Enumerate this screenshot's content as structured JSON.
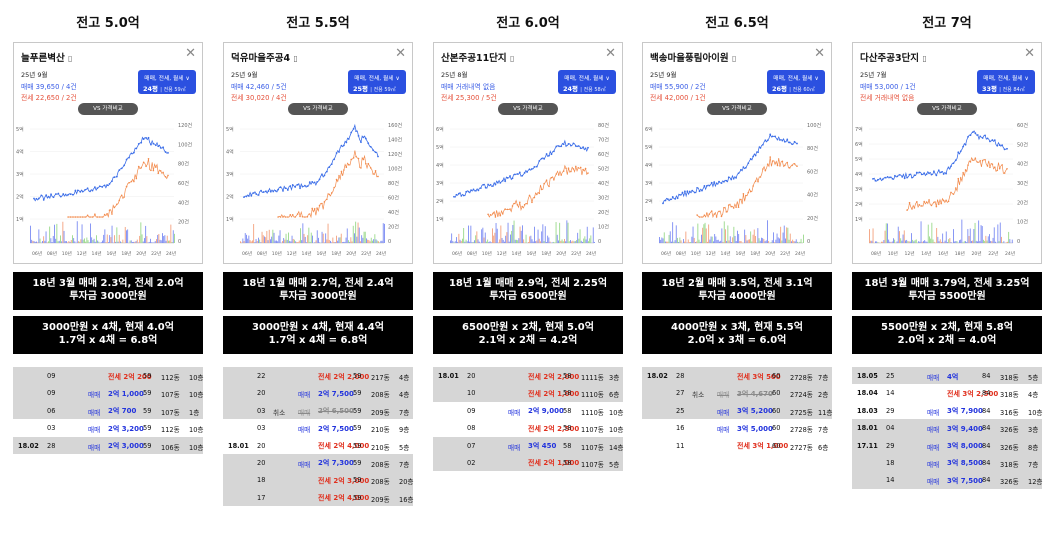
{
  "colors": {
    "sale": "#3c6ee8",
    "lease": "#ee7a3a",
    "primary": "#2b50e0"
  },
  "icons": {
    "close": "close-icon",
    "map": "map-icon",
    "dropdown": "chevron-down-icon"
  },
  "columns": [
    {
      "header": "전고 5.0억",
      "card": {
        "name": "늘푸른벽산",
        "date": "25년 9월",
        "sale": "매매 39,650 / 4건",
        "lease": "전세 22,650 / 2건",
        "type_label": "매매, 전세, 월세 ∨",
        "size": "24평",
        "size_sub": "전용 59㎡",
        "vs_button": "VS 가격비교",
        "y_left": [
          "5억",
          "4억",
          "3억",
          "2억",
          "1억"
        ],
        "y_right": [
          "120건",
          "100건",
          "80건",
          "60건",
          "40건",
          "20건",
          "0"
        ],
        "x_ticks": [
          "06년",
          "08년",
          "10년",
          "12년",
          "14년",
          "16년",
          "18년",
          "20년",
          "22년",
          "24년"
        ]
      },
      "summary1": [
        "18년 3월 매매 2.3억, 전세 2.0억",
        "투자금 3000만원"
      ],
      "summary2": [
        "3000만원 x 4채, 현재 4.0억",
        "1.7억 x 4채 = 6.8억"
      ],
      "transactions": [
        {
          "ym": "",
          "day": "09",
          "cancel": "",
          "type": "",
          "price": "전세 2억 200",
          "kind": "lease",
          "area": "59",
          "unit": "112동",
          "floor": "10층",
          "bg": "g"
        },
        {
          "ym": "",
          "day": "09",
          "cancel": "",
          "type": "매매",
          "price": "2억 1,000",
          "kind": "sale",
          "area": "59",
          "unit": "107동",
          "floor": "10층",
          "bg": "g"
        },
        {
          "ym": "",
          "day": "06",
          "cancel": "",
          "type": "매매",
          "price": "2억 700",
          "kind": "sale",
          "area": "59",
          "unit": "107동",
          "floor": "1층",
          "bg": "g"
        },
        {
          "ym": "",
          "day": "03",
          "cancel": "",
          "type": "매매",
          "price": "2억 3,200",
          "kind": "sale",
          "area": "59",
          "unit": "112동",
          "floor": "10층",
          "bg": "w"
        },
        {
          "ym": "18.02",
          "day": "28",
          "cancel": "",
          "type": "매매",
          "price": "2억 3,000",
          "kind": "sale",
          "area": "59",
          "unit": "106동",
          "floor": "10층",
          "bg": "g"
        }
      ]
    },
    {
      "header": "전고 5.5억",
      "card": {
        "name": "덕유마을주공4",
        "date": "25년 9월",
        "sale": "매매 42,460 / 5건",
        "lease": "전세 30,020 / 4건",
        "type_label": "매매, 전세, 월세 ∨",
        "size": "25평",
        "size_sub": "전용 59㎡",
        "vs_button": "VS 가격비교",
        "y_left": [
          "5억",
          "4억",
          "3억",
          "2억",
          "1억"
        ],
        "y_right": [
          "160건",
          "140건",
          "120건",
          "100건",
          "80건",
          "60건",
          "40건",
          "20건",
          "0"
        ],
        "x_ticks": [
          "06년",
          "08년",
          "10년",
          "12년",
          "14년",
          "16년",
          "18년",
          "20년",
          "22년",
          "24년"
        ]
      },
      "summary1": [
        "18년 1월 매매 2.7억, 전세 2.4억",
        "투자금 3000만원"
      ],
      "summary2": [
        "3000만원 x 4채, 현재 4.4억",
        "1.7억 x 4채 = 6.8억"
      ],
      "transactions": [
        {
          "ym": "",
          "day": "22",
          "cancel": "",
          "type": "",
          "price": "전세 2억 2,000",
          "kind": "lease",
          "area": "59",
          "unit": "217동",
          "floor": "4층",
          "bg": "g"
        },
        {
          "ym": "",
          "day": "20",
          "cancel": "",
          "type": "매매",
          "price": "2억 7,500",
          "kind": "sale",
          "area": "59",
          "unit": "208동",
          "floor": "4층",
          "bg": "g"
        },
        {
          "ym": "",
          "day": "03",
          "cancel": "취소",
          "type": "매매",
          "price": "2억 6,500",
          "kind": "strike",
          "area": "59",
          "unit": "209동",
          "floor": "7층",
          "bg": "g"
        },
        {
          "ym": "",
          "day": "03",
          "cancel": "",
          "type": "매매",
          "price": "2억 7,500",
          "kind": "sale",
          "area": "59",
          "unit": "210동",
          "floor": "9층",
          "bg": "w"
        },
        {
          "ym": "18.01",
          "day": "20",
          "cancel": "",
          "type": "",
          "price": "전세 2억 4,000",
          "kind": "lease",
          "area": "59",
          "unit": "210동",
          "floor": "5층",
          "bg": "w"
        },
        {
          "ym": "",
          "day": "20",
          "cancel": "",
          "type": "매매",
          "price": "2억 7,300",
          "kind": "sale",
          "area": "59",
          "unit": "208동",
          "floor": "7층",
          "bg": "g"
        },
        {
          "ym": "",
          "day": "18",
          "cancel": "",
          "type": "",
          "price": "전세 2억 3,000",
          "kind": "lease",
          "area": "59",
          "unit": "208동",
          "floor": "20층",
          "bg": "g"
        },
        {
          "ym": "",
          "day": "17",
          "cancel": "",
          "type": "",
          "price": "전세 2억 4,000",
          "kind": "lease",
          "area": "59",
          "unit": "209동",
          "floor": "16층",
          "bg": "g"
        }
      ]
    },
    {
      "header": "전고 6.0억",
      "card": {
        "name": "산본주공11단지",
        "date": "25년 8월",
        "sale": "매매 거래내역 없음",
        "lease": "전세 25,300 / 5건",
        "type_label": "매매, 전세, 월세 ∨",
        "size": "24평",
        "size_sub": "전용 58㎡",
        "vs_button": "VS 가격비교",
        "y_left": [
          "6억",
          "5억",
          "4억",
          "3억",
          "2억",
          "1억"
        ],
        "y_right": [
          "80건",
          "70건",
          "60건",
          "50건",
          "40건",
          "30건",
          "20건",
          "10건",
          "0"
        ],
        "x_ticks": [
          "06년",
          "08년",
          "10년",
          "12년",
          "14년",
          "16년",
          "18년",
          "20년",
          "22년",
          "24년"
        ]
      },
      "summary1": [
        "18년 1월 매매 2.9억, 전세 2.25억",
        "투자금 6500만원"
      ],
      "summary2": [
        "6500만원 x 2채, 현재 5.0억",
        "2.1억 x 2채 = 4.2억"
      ],
      "transactions": [
        {
          "ym": "18.01",
          "day": "20",
          "cancel": "",
          "type": "",
          "price": "전세 2억 2,000",
          "kind": "lease",
          "area": "58",
          "unit": "1111동",
          "floor": "3층",
          "bg": "g"
        },
        {
          "ym": "",
          "day": "10",
          "cancel": "",
          "type": "",
          "price": "전세 2억 1,000",
          "kind": "lease",
          "area": "58",
          "unit": "1110동",
          "floor": "6층",
          "bg": "g"
        },
        {
          "ym": "",
          "day": "09",
          "cancel": "",
          "type": "매매",
          "price": "2억 9,000",
          "kind": "sale",
          "area": "58",
          "unit": "1110동",
          "floor": "10층",
          "bg": "w"
        },
        {
          "ym": "",
          "day": "08",
          "cancel": "",
          "type": "",
          "price": "전세 2억 2,500",
          "kind": "lease",
          "area": "58",
          "unit": "1107동",
          "floor": "10층",
          "bg": "w"
        },
        {
          "ym": "",
          "day": "07",
          "cancel": "",
          "type": "매매",
          "price": "3억 450",
          "kind": "sale",
          "area": "58",
          "unit": "1107동",
          "floor": "14층",
          "bg": "g"
        },
        {
          "ym": "",
          "day": "02",
          "cancel": "",
          "type": "",
          "price": "전세 2억 1,000",
          "kind": "lease",
          "area": "58",
          "unit": "1107동",
          "floor": "5층",
          "bg": "g"
        }
      ]
    },
    {
      "header": "전고 6.5억",
      "card": {
        "name": "백송마을풍림아이원",
        "date": "25년 9월",
        "sale": "매매 55,900 / 2건",
        "lease": "전세 42,000 / 1건",
        "type_label": "매매, 전세, 월세 ∨",
        "size": "26평",
        "size_sub": "전용 60㎡",
        "vs_button": "VS 가격비교",
        "y_left": [
          "6억",
          "5억",
          "4억",
          "3억",
          "2억",
          "1억"
        ],
        "y_right": [
          "100건",
          "80건",
          "60건",
          "40건",
          "20건",
          "0"
        ],
        "x_ticks": [
          "06년",
          "08년",
          "10년",
          "12년",
          "14년",
          "16년",
          "18년",
          "20년",
          "22년",
          "24년"
        ]
      },
      "summary1": [
        "18년 2월 매매 3.5억, 전세 3.1억",
        "투자금 4000만원"
      ],
      "summary2": [
        "4000만원 x 3채, 현재 5.5억",
        "2.0억 x 3채 = 6.0억"
      ],
      "transactions": [
        {
          "ym": "18.02",
          "day": "28",
          "cancel": "",
          "type": "",
          "price": "전세 3억 500",
          "kind": "lease",
          "area": "60",
          "unit": "2728동",
          "floor": "7층",
          "bg": "g"
        },
        {
          "ym": "",
          "day": "27",
          "cancel": "취소",
          "type": "매매",
          "price": "3억 4,670",
          "kind": "strike",
          "area": "60",
          "unit": "2724동",
          "floor": "2층",
          "bg": "g"
        },
        {
          "ym": "",
          "day": "25",
          "cancel": "",
          "type": "매매",
          "price": "3억 5,200",
          "kind": "sale",
          "area": "60",
          "unit": "2725동",
          "floor": "11층",
          "bg": "g"
        },
        {
          "ym": "",
          "day": "16",
          "cancel": "",
          "type": "매매",
          "price": "3억 5,000",
          "kind": "sale",
          "area": "60",
          "unit": "2728동",
          "floor": "7층",
          "bg": "w"
        },
        {
          "ym": "",
          "day": "11",
          "cancel": "",
          "type": "",
          "price": "전세 3억 1,000",
          "kind": "lease",
          "area": "60",
          "unit": "2727동",
          "floor": "6층",
          "bg": "w"
        }
      ]
    },
    {
      "header": "전고 7억",
      "card": {
        "name": "다산주공3단지",
        "date": "25년 7월",
        "sale": "매매 53,000 / 1건",
        "lease": "전세 거래내역 없음",
        "type_label": "매매, 전세, 월세 ∨",
        "size": "33평",
        "size_sub": "전용 84㎡",
        "vs_button": "VS 가격비교",
        "y_left": [
          "7억",
          "6억",
          "5억",
          "4억",
          "3억",
          "2억",
          "1억"
        ],
        "y_right": [
          "60건",
          "50건",
          "40건",
          "30건",
          "20건",
          "10건",
          "0"
        ],
        "x_ticks": [
          "08년",
          "10년",
          "12년",
          "14년",
          "16년",
          "18년",
          "20년",
          "22년",
          "24년"
        ]
      },
      "summary1": [
        "18년 3월 매매 3.79억, 전세 3.25억",
        "투자금 5500만원"
      ],
      "summary2": [
        "5500만원 x 2채, 현재 5.8억",
        "2.0억 x 2채 = 4.0억"
      ],
      "transactions": [
        {
          "ym": "18.05",
          "day": "25",
          "cancel": "",
          "type": "매매",
          "price": "4억",
          "kind": "sale",
          "area": "84",
          "unit": "318동",
          "floor": "5층",
          "bg": "g"
        },
        {
          "ym": "18.04",
          "day": "14",
          "cancel": "",
          "type": "",
          "price": "전세 3억 2,500",
          "kind": "lease",
          "area": "84",
          "unit": "318동",
          "floor": "4층",
          "bg": "w"
        },
        {
          "ym": "18.03",
          "day": "29",
          "cancel": "",
          "type": "매매",
          "price": "3억 7,900",
          "kind": "sale",
          "area": "84",
          "unit": "316동",
          "floor": "10층",
          "bg": "w"
        },
        {
          "ym": "18.01",
          "day": "04",
          "cancel": "",
          "type": "매매",
          "price": "3억 9,400",
          "kind": "sale",
          "area": "84",
          "unit": "326동",
          "floor": "3층",
          "bg": "g"
        },
        {
          "ym": "17.11",
          "day": "29",
          "cancel": "",
          "type": "매매",
          "price": "3억 8,000",
          "kind": "sale",
          "area": "84",
          "unit": "326동",
          "floor": "8층",
          "bg": "g"
        },
        {
          "ym": "",
          "day": "18",
          "cancel": "",
          "type": "매매",
          "price": "3억 8,500",
          "kind": "sale",
          "area": "84",
          "unit": "318동",
          "floor": "7층",
          "bg": "g"
        },
        {
          "ym": "",
          "day": "14",
          "cancel": "",
          "type": "매매",
          "price": "3억 7,500",
          "kind": "sale",
          "area": "84",
          "unit": "326동",
          "floor": "12층",
          "bg": "g"
        }
      ]
    }
  ]
}
